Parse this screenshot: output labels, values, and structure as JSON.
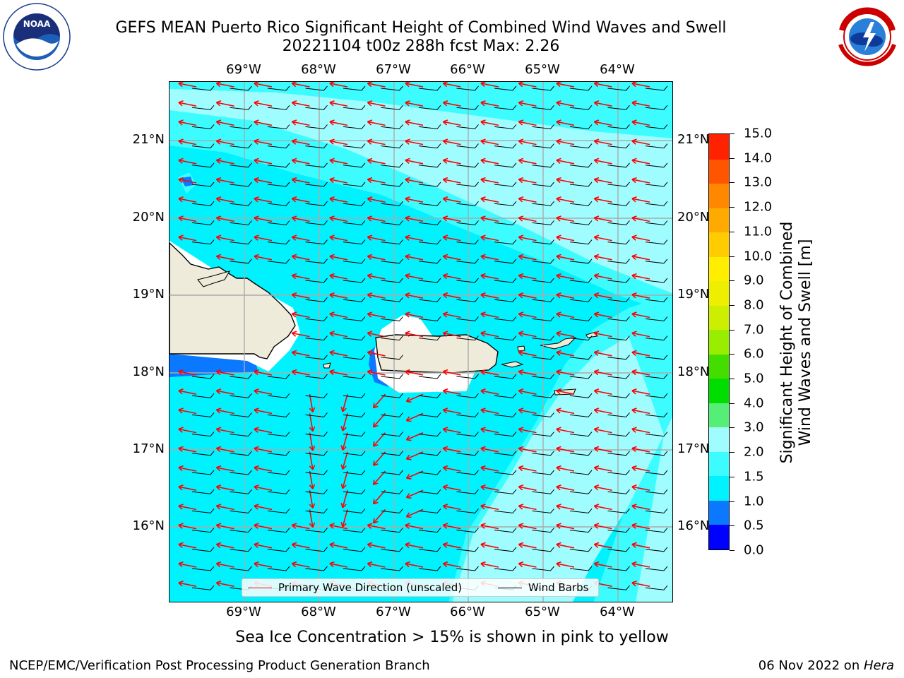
{
  "title_line1": "GEFS MEAN Puerto Rico Significant Height of Combined Wind Waves and Swell",
  "title_line2": "20221104 t00z 288h fcst   Max: 2.26",
  "longitude_labels": [
    "69°W",
    "68°W",
    "67°W",
    "66°W",
    "65°W",
    "64°W"
  ],
  "latitude_labels": [
    "21°N",
    "20°N",
    "19°N",
    "18°N",
    "17°N",
    "16°N"
  ],
  "legend": {
    "wave_label": "Primary Wave Direction (unscaled)",
    "barb_label": "Wind Barbs",
    "wave_color": "#ff0000",
    "barb_color": "#000000"
  },
  "colorbar": {
    "title_line1": "Significant Height of Combined",
    "title_line2": "Wind Waves and Swell [m]",
    "tick_labels": [
      "0.0",
      "0.5",
      "1.0",
      "1.5",
      "2.0",
      "3.0",
      "4.0",
      "5.0",
      "6.0",
      "7.0",
      "8.0",
      "9.0",
      "10.0",
      "11.0",
      "12.0",
      "13.0",
      "14.0",
      "15.0"
    ],
    "colors": [
      "#0000ff",
      "#0a78ff",
      "#00f2ff",
      "#3dfcff",
      "#a0fdff",
      "#55ee77",
      "#00dd00",
      "#44dd00",
      "#99ee00",
      "#ccee00",
      "#eeee00",
      "#ffee00",
      "#ffcc00",
      "#ffaa00",
      "#ff8800",
      "#ff5500",
      "#ff2200"
    ]
  },
  "subtitle": "Sea Ice Concentration > 15% is shown in pink to yellow",
  "footer_left": "NCEP/EMC/Verification Post Processing Product Generation Branch",
  "footer_right_date": "06 Nov 2022 on ",
  "footer_right_host": "Hera",
  "logos": {
    "left": "noaa-logo",
    "right": "nws-logo"
  }
}
